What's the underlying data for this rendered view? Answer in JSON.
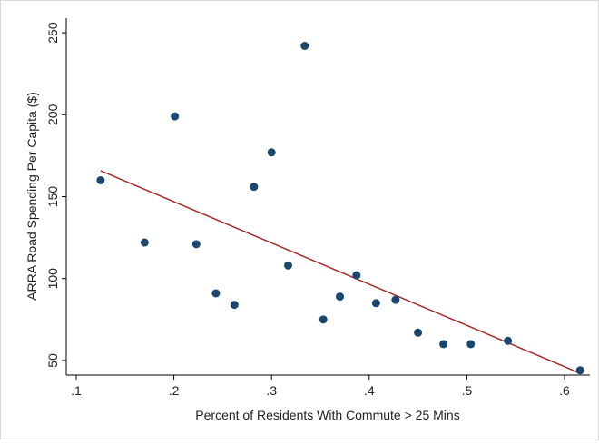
{
  "chart_data": {
    "type": "scatter",
    "x_label": "Percent of Residents With Commute > 25 Mins",
    "y_label": "ARRA Road Spending Per Capita ($)",
    "x": [
      0.125,
      0.17,
      0.201,
      0.223,
      0.243,
      0.262,
      0.282,
      0.3,
      0.317,
      0.334,
      0.353,
      0.37,
      0.387,
      0.407,
      0.427,
      0.45,
      0.476,
      0.504,
      0.542,
      0.616
    ],
    "values": [
      160,
      122,
      199,
      121,
      91,
      84,
      156,
      177,
      108,
      242,
      75,
      89,
      102,
      85,
      87,
      67,
      60,
      60,
      62,
      44
    ],
    "color": "#1a476f",
    "fit_line": {
      "x": [
        0.125,
        0.616
      ],
      "values": [
        165.8,
        42.2
      ],
      "color": "#a52a2a"
    },
    "xlim": [
      0.0898,
      0.626
    ],
    "ylim": [
      41.1,
      258.9
    ],
    "xticks": [
      {
        "value": 0.1,
        "label": ".1"
      },
      {
        "value": 0.2,
        "label": ".2"
      },
      {
        "value": 0.3,
        "label": ".3"
      },
      {
        "value": 0.4,
        "label": ".4"
      },
      {
        "value": 0.5,
        "label": ".5"
      },
      {
        "value": 0.6,
        "label": ".6"
      }
    ],
    "yticks": [
      50,
      100,
      150,
      200,
      250
    ]
  }
}
